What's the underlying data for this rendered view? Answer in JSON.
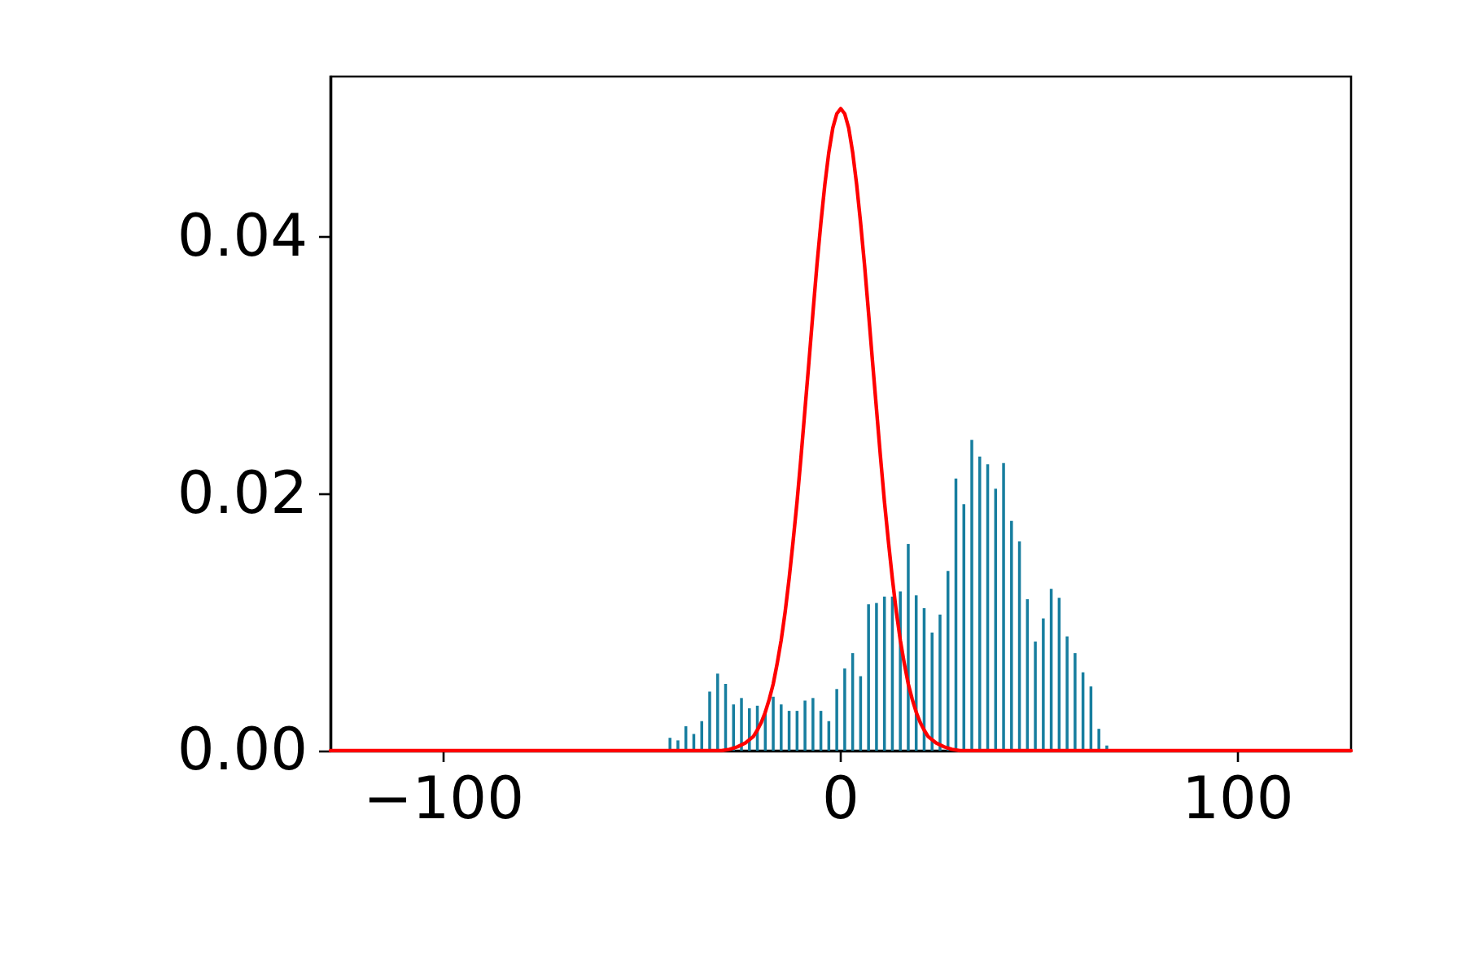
{
  "chart_data": {
    "type": "histogram",
    "bins": [
      -44,
      -42,
      -40,
      -38,
      -36,
      -34,
      -32,
      -30,
      -28,
      -26,
      -24,
      -22,
      -20,
      -18,
      -16,
      -14,
      -12,
      -10,
      -8,
      -6,
      -4,
      -2,
      0,
      2,
      4,
      6,
      8,
      10,
      12,
      14,
      16,
      18,
      20,
      22,
      24,
      26,
      28,
      30,
      32,
      34,
      36,
      38,
      40,
      42,
      44,
      46,
      48,
      50,
      52,
      54,
      56,
      58,
      60,
      62,
      64,
      66,
      68
    ],
    "series": [
      {
        "color": "#177e9f",
        "values": [
          0.001,
          0.0008,
          0.0019,
          0.0013,
          0.0023,
          0.0046,
          0.006,
          0.0052,
          0.0036,
          0.0041,
          0.0033,
          0.0035,
          0.0031,
          0.0042,
          0.0036,
          0.0031,
          0.0031,
          0.0039,
          0.0041,
          0.0031,
          0.0023,
          0.0048,
          0.0064,
          0.0076,
          0.0058,
          0.0114,
          0.0115,
          0.012,
          0.012,
          0.0124,
          0.0161,
          0.0121,
          0.0111,
          0.0092,
          0.0106,
          0.014,
          0.0212,
          0.0192,
          0.0242,
          0.0229,
          0.0223,
          0.0204,
          0.0224,
          0.0179,
          0.0163,
          0.0118,
          0.0085,
          0.0103,
          0.0126,
          0.0119,
          0.0089,
          0.0076,
          0.0061,
          0.005,
          0.0017,
          0.0004
        ]
      },
      {
        "type": "line",
        "color": "#ff0000",
        "x": [
          -128.5,
          -40,
          -30,
          -28,
          -26,
          -24,
          -22,
          -21,
          -20,
          -19,
          -18,
          -17,
          -16,
          -15,
          -14,
          -13,
          -12,
          -11,
          -10,
          -9,
          -8,
          -7,
          -6,
          -5,
          -4,
          -3,
          -2,
          -1,
          0,
          1,
          2,
          3,
          4,
          5,
          6,
          7,
          8,
          9,
          10,
          11,
          12,
          13,
          14,
          15,
          16,
          17,
          18,
          19,
          20,
          21,
          22,
          24,
          26,
          28,
          30,
          40,
          128.5
        ],
        "values": [
          0,
          0,
          0,
          0.0001,
          0.0003,
          0.0006,
          0.0011,
          0.0016,
          0.0022,
          0.003,
          0.004,
          0.0052,
          0.0068,
          0.0086,
          0.0108,
          0.0134,
          0.0163,
          0.0194,
          0.0229,
          0.0266,
          0.0303,
          0.0341,
          0.0378,
          0.0411,
          0.0441,
          0.0466,
          0.0485,
          0.0496,
          0.05,
          0.0496,
          0.0485,
          0.0466,
          0.0441,
          0.0411,
          0.0378,
          0.0341,
          0.0303,
          0.0266,
          0.0229,
          0.0194,
          0.0163,
          0.0134,
          0.0108,
          0.0086,
          0.0068,
          0.0052,
          0.004,
          0.003,
          0.0022,
          0.0016,
          0.0011,
          0.0006,
          0.0003,
          0.0001,
          0,
          0,
          0
        ]
      }
    ],
    "xlim": [
      -128.5,
      128.5
    ],
    "xticks": [
      {
        "value": -100,
        "label": "−100"
      },
      0,
      100
    ],
    "ylim": [
      0,
      0.0525
    ],
    "yticks": [
      {
        "value": 0,
        "label": "0.00"
      },
      {
        "value": 0.02,
        "label": "0.02"
      },
      {
        "value": 0.04,
        "label": "0.04"
      }
    ],
    "grid": false
  }
}
